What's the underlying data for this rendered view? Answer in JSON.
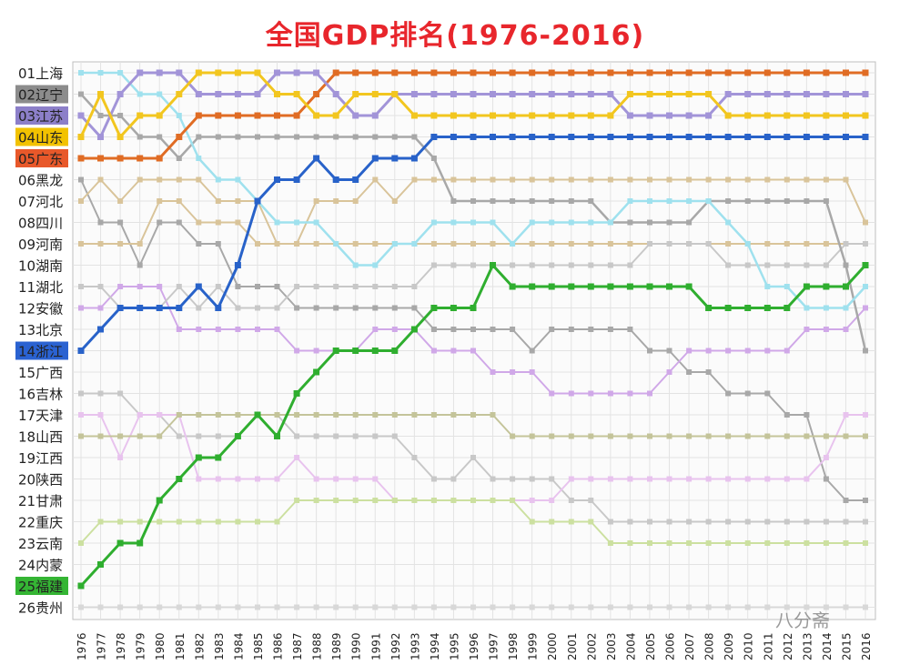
{
  "chart_data": {
    "type": "line",
    "title": "全国GDP排名(1976-2016)",
    "x": [
      "1976",
      "1977",
      "1978",
      "1979",
      "1980",
      "1981",
      "1982",
      "1983",
      "1984",
      "1985",
      "1986",
      "1987",
      "1988",
      "1989",
      "1990",
      "1991",
      "1992",
      "1993",
      "1994",
      "1995",
      "1996",
      "1997",
      "1998",
      "1999",
      "2000",
      "2001",
      "2002",
      "2003",
      "2004",
      "2005",
      "2006",
      "2007",
      "2008",
      "2009",
      "2010",
      "2011",
      "2012",
      "2013",
      "2014",
      "2015",
      "2016"
    ],
    "y_categories": [
      "01上海",
      "02辽宁",
      "03江苏",
      "04山东",
      "05广东",
      "06黑龙",
      "07河北",
      "08四川",
      "09河南",
      "10湖南",
      "11湖北",
      "12安徽",
      "13北京",
      "14浙江",
      "15广西",
      "16吉林",
      "17天津",
      "18山西",
      "19江西",
      "20陕西",
      "21甘肃",
      "22重庆",
      "23云南",
      "24内蒙",
      "25福建",
      "26贵州"
    ],
    "ylim": [
      1,
      26
    ],
    "grid": true,
    "highlighted_labels": [
      {
        "label": "02辽宁",
        "color": "#8c8c8c"
      },
      {
        "label": "03江苏",
        "color": "#8c7fc9"
      },
      {
        "label": "04山东",
        "color": "#f2c200"
      },
      {
        "label": "05广东",
        "color": "#e8582a"
      },
      {
        "label": "14浙江",
        "color": "#2a62d1"
      },
      {
        "label": "25福建",
        "color": "#35b534"
      }
    ],
    "series": [
      {
        "name": "广东",
        "color": "#e06c24",
        "width": 3,
        "ranks": [
          5,
          5,
          5,
          5,
          5,
          4,
          3,
          3,
          3,
          3,
          3,
          3,
          2,
          1,
          1,
          1,
          1,
          1,
          1,
          1,
          1,
          1,
          1,
          1,
          1,
          1,
          1,
          1,
          1,
          1,
          1,
          1,
          1,
          1,
          1,
          1,
          1,
          1,
          1,
          1,
          1
        ]
      },
      {
        "name": "江苏",
        "color": "#a294d8",
        "width": 3,
        "ranks": [
          3,
          4,
          2,
          1,
          1,
          1,
          2,
          2,
          2,
          2,
          1,
          1,
          1,
          2,
          3,
          3,
          2,
          2,
          2,
          2,
          2,
          2,
          2,
          2,
          2,
          2,
          2,
          2,
          3,
          3,
          3,
          3,
          3,
          2,
          2,
          2,
          2,
          2,
          2,
          2,
          2
        ]
      },
      {
        "name": "山东",
        "color": "#f2c61f",
        "width": 3,
        "ranks": [
          4,
          2,
          4,
          3,
          3,
          2,
          1,
          1,
          1,
          1,
          2,
          2,
          3,
          3,
          2,
          2,
          2,
          3,
          3,
          3,
          3,
          3,
          3,
          3,
          3,
          3,
          3,
          3,
          2,
          2,
          2,
          2,
          2,
          3,
          3,
          3,
          3,
          3,
          3,
          3,
          3
        ]
      },
      {
        "name": "浙江",
        "color": "#2862c9",
        "width": 3,
        "ranks": [
          14,
          13,
          12,
          12,
          12,
          12,
          11,
          12,
          10,
          7,
          6,
          6,
          5,
          6,
          6,
          5,
          5,
          5,
          4,
          4,
          4,
          4,
          4,
          4,
          4,
          4,
          4,
          4,
          4,
          4,
          4,
          4,
          4,
          4,
          4,
          4,
          4,
          4,
          4,
          4,
          4
        ]
      },
      {
        "name": "福建",
        "color": "#2fae2f",
        "width": 3,
        "ranks": [
          25,
          24,
          23,
          23,
          21,
          20,
          19,
          19,
          18,
          17,
          18,
          16,
          15,
          14,
          14,
          14,
          14,
          13,
          12,
          12,
          12,
          10,
          11,
          11,
          11,
          11,
          11,
          11,
          11,
          11,
          11,
          11,
          12,
          12,
          12,
          12,
          12,
          11,
          11,
          11,
          10
        ]
      },
      {
        "name": "辽宁",
        "color": "#a8a8a8",
        "width": 2.5,
        "ranks": [
          2,
          3,
          3,
          4,
          4,
          5,
          4,
          4,
          4,
          4,
          4,
          4,
          4,
          4,
          4,
          4,
          4,
          4,
          5,
          7,
          7,
          7,
          7,
          7,
          7,
          7,
          7,
          8,
          8,
          8,
          8,
          8,
          7,
          7,
          7,
          7,
          7,
          7,
          7,
          10,
          14
        ]
      },
      {
        "name": "上海",
        "color": "#9fe1ee",
        "width": 2.5,
        "ranks": [
          1,
          1,
          1,
          2,
          2,
          3,
          5,
          6,
          6,
          7,
          8,
          8,
          8,
          9,
          10,
          10,
          9,
          9,
          8,
          8,
          8,
          8,
          9,
          8,
          8,
          8,
          8,
          8,
          7,
          7,
          7,
          7,
          7,
          8,
          9,
          11,
          11,
          12,
          12,
          12,
          11
        ]
      },
      {
        "name": "四川",
        "color": "#a8a8a8",
        "width": 2,
        "ranks": [
          6,
          8,
          8,
          10,
          8,
          8,
          9,
          9,
          11,
          11,
          11,
          12,
          12,
          12,
          12,
          12,
          12,
          12,
          13,
          13,
          13,
          13,
          13,
          14,
          13,
          13,
          13,
          13,
          13,
          14,
          14,
          15,
          15,
          16,
          16,
          16,
          17,
          17,
          20,
          21,
          21
        ]
      },
      {
        "name": "河北",
        "color": "#d9c49a",
        "width": 2,
        "ranks": [
          7,
          6,
          7,
          6,
          6,
          6,
          6,
          7,
          7,
          7,
          9,
          9,
          7,
          7,
          7,
          6,
          7,
          6,
          6,
          6,
          6,
          6,
          6,
          6,
          6,
          6,
          6,
          6,
          6,
          6,
          6,
          6,
          6,
          6,
          6,
          6,
          6,
          6,
          6,
          6,
          8
        ]
      },
      {
        "name": "河南",
        "color": "#d9c49a",
        "width": 2,
        "ranks": [
          9,
          9,
          9,
          9,
          7,
          7,
          8,
          8,
          8,
          9,
          9,
          9,
          9,
          9,
          9,
          9,
          9,
          9,
          9,
          9,
          9,
          9,
          9,
          9,
          9,
          9,
          9,
          9,
          9,
          9,
          9,
          9,
          9,
          9,
          9,
          9,
          9,
          9,
          9,
          9,
          9
        ]
      },
      {
        "name": "北京",
        "color": "#d0a8e8",
        "width": 2,
        "ranks": [
          12,
          12,
          11,
          11,
          11,
          13,
          13,
          13,
          13,
          13,
          13,
          14,
          14,
          14,
          14,
          13,
          13,
          13,
          14,
          14,
          14,
          15,
          15,
          15,
          16,
          16,
          16,
          16,
          16,
          16,
          15,
          14,
          14,
          14,
          14,
          14,
          14,
          13,
          13,
          13,
          12
        ]
      },
      {
        "name": "湖北",
        "color": "#c8c8c8",
        "width": 2,
        "ranks": [
          11,
          11,
          12,
          12,
          12,
          11,
          12,
          11,
          12,
          12,
          12,
          11,
          11,
          11,
          11,
          11,
          11,
          11,
          10,
          10,
          10,
          10,
          10,
          10,
          10,
          10,
          10,
          10,
          10,
          9,
          9,
          9,
          9,
          10,
          10,
          10,
          10,
          10,
          10,
          9,
          9
        ]
      },
      {
        "name": "吉林",
        "color": "#c8c8c8",
        "width": 2,
        "ranks": [
          16,
          16,
          16,
          17,
          17,
          18,
          18,
          18,
          18,
          17,
          17,
          18,
          18,
          18,
          18,
          18,
          18,
          19,
          20,
          20,
          19,
          20,
          20,
          20,
          20,
          21,
          21,
          22,
          22,
          22,
          22,
          22,
          22,
          22,
          22,
          22,
          22,
          22,
          22,
          22,
          22
        ]
      },
      {
        "name": "天津",
        "color": "#e8c3ee",
        "width": 2,
        "ranks": [
          17,
          17,
          19,
          17,
          17,
          17,
          20,
          20,
          20,
          20,
          20,
          19,
          20,
          20,
          20,
          20,
          21,
          21,
          21,
          21,
          21,
          21,
          21,
          21,
          21,
          20,
          20,
          20,
          20,
          20,
          20,
          20,
          20,
          20,
          20,
          20,
          20,
          20,
          19,
          17,
          17
        ]
      },
      {
        "name": "山西",
        "color": "#c4c49a",
        "width": 2,
        "ranks": [
          18,
          18,
          18,
          18,
          18,
          17,
          17,
          17,
          17,
          17,
          17,
          17,
          17,
          17,
          17,
          17,
          17,
          17,
          17,
          17,
          17,
          17,
          18,
          18,
          18,
          18,
          18,
          18,
          18,
          18,
          18,
          18,
          18,
          18,
          18,
          18,
          18,
          18,
          18,
          18,
          18
        ]
      },
      {
        "name": "云南",
        "color": "#cce0a0",
        "width": 2,
        "ranks": [
          23,
          22,
          22,
          22,
          22,
          22,
          22,
          22,
          22,
          22,
          22,
          21,
          21,
          21,
          21,
          21,
          21,
          21,
          21,
          21,
          21,
          21,
          21,
          22,
          22,
          22,
          22,
          23,
          23,
          23,
          23,
          23,
          23,
          23,
          23,
          23,
          23,
          23,
          23,
          23,
          23
        ]
      },
      {
        "name": "贵州",
        "color": "#d8d8d8",
        "width": 2,
        "ranks": [
          26,
          26,
          26,
          26,
          26,
          26,
          26,
          26,
          26,
          26,
          26,
          26,
          26,
          26,
          26,
          26,
          26,
          26,
          26,
          26,
          26,
          26,
          26,
          26,
          26,
          26,
          26,
          26,
          26,
          26,
          26,
          26,
          26,
          26,
          26,
          26,
          26,
          26,
          26,
          26,
          26
        ]
      }
    ]
  },
  "watermark": "八分斋"
}
